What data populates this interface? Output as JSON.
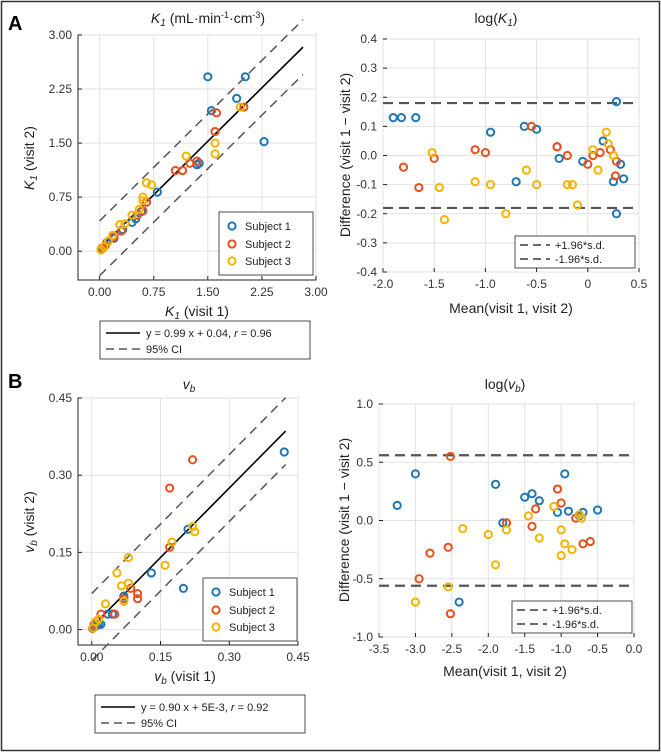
{
  "panel_labels": [
    "A",
    "B"
  ],
  "colors": {
    "subject1": "#1f77b4",
    "subject2": "#e8501e",
    "subject3": "#f4b400",
    "fit": "#000000",
    "ci": "#555555"
  },
  "chart_data": [
    {
      "id": "K1",
      "type": "scatter",
      "title_main": "K",
      "title_sub": "1",
      "title_unit": " (mL·min",
      "title_unit_sup1": "-1",
      "title_unit_mid": "·cm",
      "title_unit_sup2": "-3",
      "title_unit_end": ")",
      "xlabel_main": "K",
      "xlabel_sub": "1",
      "xlabel_rest": " (visit 1)",
      "ylabel_main": "K",
      "ylabel_sub": "1",
      "ylabel_rest": " (visit 2)",
      "xlim": [
        -0.3,
        3.0
      ],
      "ylim": [
        -0.4,
        3.0
      ],
      "xticks": [
        "0.00",
        "0.75",
        "1.50",
        "2.25",
        "3.00"
      ],
      "xtick_values": [
        0,
        0.75,
        1.5,
        2.25,
        3.0
      ],
      "yticks": [
        "0.00",
        "0.75",
        "1.50",
        "2.25",
        "3.00"
      ],
      "ytick_values": [
        0,
        0.75,
        1.5,
        2.25,
        3.0
      ],
      "grid": true,
      "fit": {
        "slope": 0.99,
        "intercept": 0.04,
        "ci": 0.38
      },
      "legend": [
        "Subject 1",
        "Subject 2",
        "Subject 3"
      ],
      "legend_position": "bottom-right",
      "series": [
        {
          "name": "Subject 1",
          "color_key": "subject1",
          "points": [
            [
              0.02,
              0.02
            ],
            [
              0.05,
              0.05
            ],
            [
              0.1,
              0.12
            ],
            [
              0.2,
              0.18
            ],
            [
              0.32,
              0.3
            ],
            [
              0.45,
              0.4
            ],
            [
              0.5,
              0.45
            ],
            [
              0.58,
              0.55
            ],
            [
              0.8,
              0.82
            ],
            [
              1.35,
              1.2
            ],
            [
              1.38,
              1.22
            ],
            [
              1.5,
              2.42
            ],
            [
              1.55,
              1.95
            ],
            [
              1.9,
              2.12
            ],
            [
              2.02,
              2.42
            ],
            [
              2.28,
              1.52
            ]
          ]
        },
        {
          "name": "Subject 2",
          "color_key": "subject2",
          "points": [
            [
              0.03,
              0.04
            ],
            [
              0.08,
              0.08
            ],
            [
              0.2,
              0.2
            ],
            [
              0.3,
              0.28
            ],
            [
              0.52,
              0.5
            ],
            [
              0.6,
              0.56
            ],
            [
              0.65,
              0.68
            ],
            [
              1.05,
              1.12
            ],
            [
              1.15,
              1.12
            ],
            [
              1.25,
              1.22
            ],
            [
              1.35,
              1.25
            ],
            [
              1.6,
              1.66
            ],
            [
              1.62,
              1.92
            ],
            [
              2.0,
              2.0
            ]
          ]
        },
        {
          "name": "Subject 3",
          "color_key": "subject3",
          "points": [
            [
              0.02,
              0.02
            ],
            [
              0.06,
              0.06
            ],
            [
              0.12,
              0.14
            ],
            [
              0.18,
              0.22
            ],
            [
              0.28,
              0.37
            ],
            [
              0.35,
              0.38
            ],
            [
              0.45,
              0.5
            ],
            [
              0.55,
              0.58
            ],
            [
              0.6,
              0.7
            ],
            [
              0.6,
              0.75
            ],
            [
              0.65,
              0.95
            ],
            [
              0.72,
              0.92
            ],
            [
              1.2,
              1.32
            ],
            [
              1.6,
              1.35
            ],
            [
              1.6,
              1.5
            ],
            [
              1.95,
              2.0
            ]
          ]
        }
      ],
      "fit_legend": {
        "line1_a": "y = 0.99 x + 0.04, ",
        "line1_r": "r",
        "line1_b": " = 0.96",
        "line2": "95% CI"
      }
    },
    {
      "id": "logK1",
      "type": "scatter",
      "title_fn": "log(",
      "title_main": "K",
      "title_sub": "1",
      "title_end": ")",
      "xlabel": "Mean(visit 1, visit 2)",
      "ylabel": "Difference (visit 1 − visit 2)",
      "xlim": [
        -2.0,
        0.5
      ],
      "ylim": [
        -0.4,
        0.4
      ],
      "xticks": [
        "-2.0",
        "-1.5",
        "-1.0",
        "-0.5",
        "0",
        "0.5"
      ],
      "xtick_values": [
        -2.0,
        -1.5,
        -1.0,
        -0.5,
        0,
        0.5
      ],
      "yticks": [
        "-0.4",
        "-0.3",
        "-0.2",
        "-0.1",
        "0.0",
        "0.1",
        "0.2",
        "0.3",
        "0.4"
      ],
      "ytick_values": [
        -0.4,
        -0.3,
        -0.2,
        -0.1,
        0.0,
        0.1,
        0.2,
        0.3,
        0.4
      ],
      "grid": true,
      "limits": {
        "upper": 0.18,
        "lower": -0.18
      },
      "legend": [
        "+1.96*s.d.",
        "-1.96*s.d."
      ],
      "legend_position": "bottom-right",
      "series": [
        {
          "name": "Subject 1",
          "color_key": "subject1",
          "points": [
            [
              -1.9,
              0.13
            ],
            [
              -1.82,
              0.13
            ],
            [
              -1.68,
              0.13
            ],
            [
              -0.95,
              0.08
            ],
            [
              -0.7,
              -0.09
            ],
            [
              -0.62,
              0.1
            ],
            [
              -0.5,
              0.09
            ],
            [
              -0.3,
              0.03
            ],
            [
              -0.28,
              -0.01
            ],
            [
              -0.05,
              -0.02
            ],
            [
              0.15,
              0.05
            ],
            [
              0.25,
              -0.09
            ],
            [
              0.28,
              0.185
            ],
            [
              0.28,
              -0.2
            ],
            [
              0.32,
              -0.03
            ],
            [
              0.35,
              -0.08
            ]
          ]
        },
        {
          "name": "Subject 2",
          "color_key": "subject2",
          "points": [
            [
              -1.8,
              -0.04
            ],
            [
              -1.65,
              -0.11
            ],
            [
              -1.5,
              -0.01
            ],
            [
              -1.1,
              0.02
            ],
            [
              -1.0,
              0.01
            ],
            [
              -0.55,
              0.1
            ],
            [
              -0.3,
              0.03
            ],
            [
              -0.2,
              0.0
            ],
            [
              0.0,
              -0.03
            ],
            [
              0.05,
              0.0
            ],
            [
              0.12,
              0.01
            ],
            [
              0.22,
              0.02
            ],
            [
              0.27,
              -0.07
            ],
            [
              0.28,
              -0.02
            ]
          ]
        },
        {
          "name": "Subject 3",
          "color_key": "subject3",
          "points": [
            [
              -1.52,
              0.01
            ],
            [
              -1.45,
              -0.11
            ],
            [
              -1.4,
              -0.22
            ],
            [
              -1.1,
              -0.09
            ],
            [
              -0.95,
              -0.1
            ],
            [
              -0.8,
              -0.2
            ],
            [
              -0.6,
              -0.05
            ],
            [
              -0.5,
              -0.1
            ],
            [
              -0.2,
              -0.1
            ],
            [
              -0.15,
              -0.1
            ],
            [
              -0.1,
              -0.17
            ],
            [
              0.05,
              0.02
            ],
            [
              0.1,
              -0.05
            ],
            [
              0.18,
              0.08
            ],
            [
              0.2,
              0.04
            ],
            [
              0.25,
              0.0
            ]
          ]
        }
      ]
    },
    {
      "id": "vb",
      "type": "scatter",
      "title_main": "v",
      "title_sub": "b",
      "xlabel_main": "v",
      "xlabel_sub": "b",
      "xlabel_rest": " (visit 1)",
      "ylabel_main": "v",
      "ylabel_sub": "b",
      "ylabel_rest": " (visit 2)",
      "xlim": [
        -0.03,
        0.45
      ],
      "ylim": [
        -0.03,
        0.45
      ],
      "xticks": [
        "0.00",
        "0.15",
        "0.30",
        "0.45"
      ],
      "xtick_values": [
        0,
        0.15,
        0.3,
        0.45
      ],
      "yticks": [
        "0.00",
        "0.15",
        "0.30",
        "0.45"
      ],
      "ytick_values": [
        0,
        0.15,
        0.3,
        0.45
      ],
      "grid": true,
      "fit": {
        "slope": 0.9,
        "intercept": 0.005,
        "ci": 0.065
      },
      "legend": [
        "Subject 1",
        "Subject 2",
        "Subject 3"
      ],
      "legend_position": "bottom-right",
      "series": [
        {
          "name": "Subject 1",
          "color_key": "subject1",
          "points": [
            [
              0.005,
              0.005
            ],
            [
              0.01,
              0.008
            ],
            [
              0.015,
              0.01
            ],
            [
              0.02,
              0.01
            ],
            [
              0.035,
              0.03
            ],
            [
              0.045,
              0.03
            ],
            [
              0.07,
              0.065
            ],
            [
              0.13,
              0.11
            ],
            [
              0.2,
              0.08
            ],
            [
              0.21,
              0.195
            ],
            [
              0.42,
              0.345
            ]
          ]
        },
        {
          "name": "Subject 2",
          "color_key": "subject2",
          "points": [
            [
              0.002,
              0.002
            ],
            [
              0.005,
              0.01
            ],
            [
              0.02,
              0.03
            ],
            [
              0.05,
              0.03
            ],
            [
              0.07,
              0.06
            ],
            [
              0.085,
              0.08
            ],
            [
              0.1,
              0.06
            ],
            [
              0.1,
              0.07
            ],
            [
              0.17,
              0.275
            ],
            [
              0.17,
              0.16
            ],
            [
              0.22,
              0.33
            ]
          ]
        },
        {
          "name": "Subject 3",
          "color_key": "subject3",
          "points": [
            [
              0.003,
              0.003
            ],
            [
              0.008,
              0.015
            ],
            [
              0.015,
              0.02
            ],
            [
              0.03,
              0.05
            ],
            [
              0.055,
              0.11
            ],
            [
              0.065,
              0.085
            ],
            [
              0.07,
              0.055
            ],
            [
              0.08,
              0.14
            ],
            [
              0.08,
              0.09
            ],
            [
              0.16,
              0.125
            ],
            [
              0.175,
              0.17
            ],
            [
              0.22,
              0.2
            ],
            [
              0.225,
              0.19
            ]
          ]
        }
      ],
      "fit_legend": {
        "line1_a": "y = 0.90 x + 5E-3, ",
        "line1_r": "r",
        "line1_b": " = 0.92",
        "line2": "95% CI"
      }
    },
    {
      "id": "logvb",
      "type": "scatter",
      "title_fn": "log(",
      "title_main": "v",
      "title_sub": "b",
      "title_end": ")",
      "xlabel": "Mean(visit 1, visit 2)",
      "ylabel": "Difference (visit 1 − visit 2)",
      "xlim": [
        -3.5,
        0.0
      ],
      "ylim": [
        -1.0,
        1.0
      ],
      "xticks": [
        "-3.5",
        "-3.0",
        "-2.5",
        "-2.0",
        "-1.5",
        "-1.0",
        "-0.5",
        "0.0"
      ],
      "xtick_values": [
        -3.5,
        -3.0,
        -2.5,
        -2.0,
        -1.5,
        -1.0,
        -0.5,
        0.0
      ],
      "yticks": [
        "-1.0",
        "-0.5",
        "0.0",
        "0.5",
        "1.0"
      ],
      "ytick_values": [
        -1.0,
        -0.5,
        0.0,
        0.5,
        1.0
      ],
      "grid": true,
      "limits": {
        "upper": 0.56,
        "lower": -0.56
      },
      "legend": [
        "+1.96*s.d.",
        "-1.96*s.d."
      ],
      "legend_position": "bottom-right",
      "series": [
        {
          "name": "Subject 1",
          "color_key": "subject1",
          "points": [
            [
              -3.25,
              0.13
            ],
            [
              -3.0,
              0.4
            ],
            [
              -2.4,
              -0.7
            ],
            [
              -1.9,
              0.31
            ],
            [
              -1.8,
              -0.02
            ],
            [
              -1.5,
              0.2
            ],
            [
              -1.4,
              0.23
            ],
            [
              -1.3,
              0.17
            ],
            [
              -1.05,
              0.07
            ],
            [
              -0.95,
              0.4
            ],
            [
              -0.9,
              0.08
            ],
            [
              -0.75,
              0.04
            ],
            [
              -0.7,
              0.07
            ],
            [
              -0.5,
              0.09
            ]
          ]
        },
        {
          "name": "Subject 2",
          "color_key": "subject2",
          "points": [
            [
              -2.95,
              -0.5
            ],
            [
              -2.8,
              -0.28
            ],
            [
              -2.55,
              -0.23
            ],
            [
              -2.52,
              0.55
            ],
            [
              -2.52,
              -0.8
            ],
            [
              -1.75,
              -0.02
            ],
            [
              -1.4,
              -0.05
            ],
            [
              -1.35,
              0.1
            ],
            [
              -1.05,
              0.27
            ],
            [
              -1.0,
              0.15
            ],
            [
              -0.8,
              0.02
            ],
            [
              -0.7,
              -0.2
            ],
            [
              -0.6,
              -0.18
            ]
          ]
        },
        {
          "name": "Subject 3",
          "color_key": "subject3",
          "points": [
            [
              -3.0,
              -0.7
            ],
            [
              -2.55,
              -0.57
            ],
            [
              -2.35,
              -0.07
            ],
            [
              -2.0,
              -0.12
            ],
            [
              -1.9,
              -0.38
            ],
            [
              -1.75,
              -0.08
            ],
            [
              -1.45,
              0.04
            ],
            [
              -1.3,
              -0.15
            ],
            [
              -1.1,
              0.12
            ],
            [
              -1.0,
              -0.3
            ],
            [
              -1.0,
              -0.08
            ],
            [
              -0.95,
              -0.2
            ],
            [
              -0.85,
              -0.25
            ],
            [
              -0.75,
              0.05
            ],
            [
              -0.72,
              0.02
            ]
          ]
        }
      ]
    }
  ]
}
